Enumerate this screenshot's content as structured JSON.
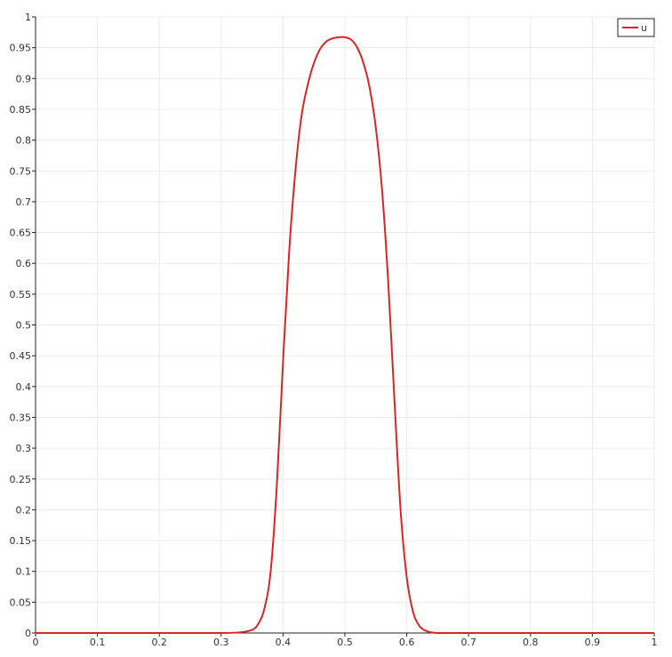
{
  "chart_data": {
    "type": "line",
    "title": "",
    "xlabel": "",
    "ylabel": "",
    "xlim": [
      0,
      1
    ],
    "ylim": [
      0,
      1
    ],
    "x_ticks": [
      0,
      0.1,
      0.2,
      0.3,
      0.4,
      0.5,
      0.6,
      0.7,
      0.8,
      0.9,
      1
    ],
    "x_tick_labels": [
      "0",
      "0.1",
      "0.2",
      "0.3",
      "0.4",
      "0.5",
      "0.6",
      "0.7",
      "0.8",
      "0.9",
      "1"
    ],
    "y_ticks": [
      0,
      0.05,
      0.1,
      0.15,
      0.2,
      0.25,
      0.3,
      0.35,
      0.4,
      0.45,
      0.5,
      0.55,
      0.6,
      0.65,
      0.7,
      0.75,
      0.8,
      0.85,
      0.9,
      0.95,
      1
    ],
    "y_tick_labels": [
      "0",
      "0.05",
      "0.1",
      "0.15",
      "0.2",
      "0.25",
      "0.3",
      "0.35",
      "0.4",
      "0.45",
      "0.5",
      "0.55",
      "0.6",
      "0.65",
      "0.7",
      "0.75",
      "0.8",
      "0.85",
      "0.9",
      "0.95",
      "1"
    ],
    "grid": true,
    "legend": {
      "position": "top-right",
      "entries": [
        "u"
      ]
    },
    "series": [
      {
        "name": "u",
        "color": "#d62728",
        "x": [
          0,
          0.1,
          0.2,
          0.3,
          0.33,
          0.35,
          0.36,
          0.37,
          0.38,
          0.39,
          0.4,
          0.41,
          0.42,
          0.43,
          0.44,
          0.45,
          0.46,
          0.47,
          0.48,
          0.49,
          0.5,
          0.51,
          0.52,
          0.53,
          0.54,
          0.55,
          0.56,
          0.57,
          0.58,
          0.59,
          0.6,
          0.61,
          0.62,
          0.63,
          0.64,
          0.65,
          0.67,
          0.7,
          0.8,
          0.9,
          1
        ],
        "y": [
          0,
          0,
          0,
          0,
          0.001,
          0.005,
          0.015,
          0.04,
          0.1,
          0.24,
          0.44,
          0.62,
          0.75,
          0.84,
          0.89,
          0.925,
          0.948,
          0.96,
          0.965,
          0.967,
          0.967,
          0.963,
          0.95,
          0.925,
          0.885,
          0.82,
          0.72,
          0.57,
          0.38,
          0.2,
          0.09,
          0.035,
          0.012,
          0.004,
          0.001,
          0,
          0,
          0,
          0,
          0,
          0
        ]
      }
    ]
  }
}
